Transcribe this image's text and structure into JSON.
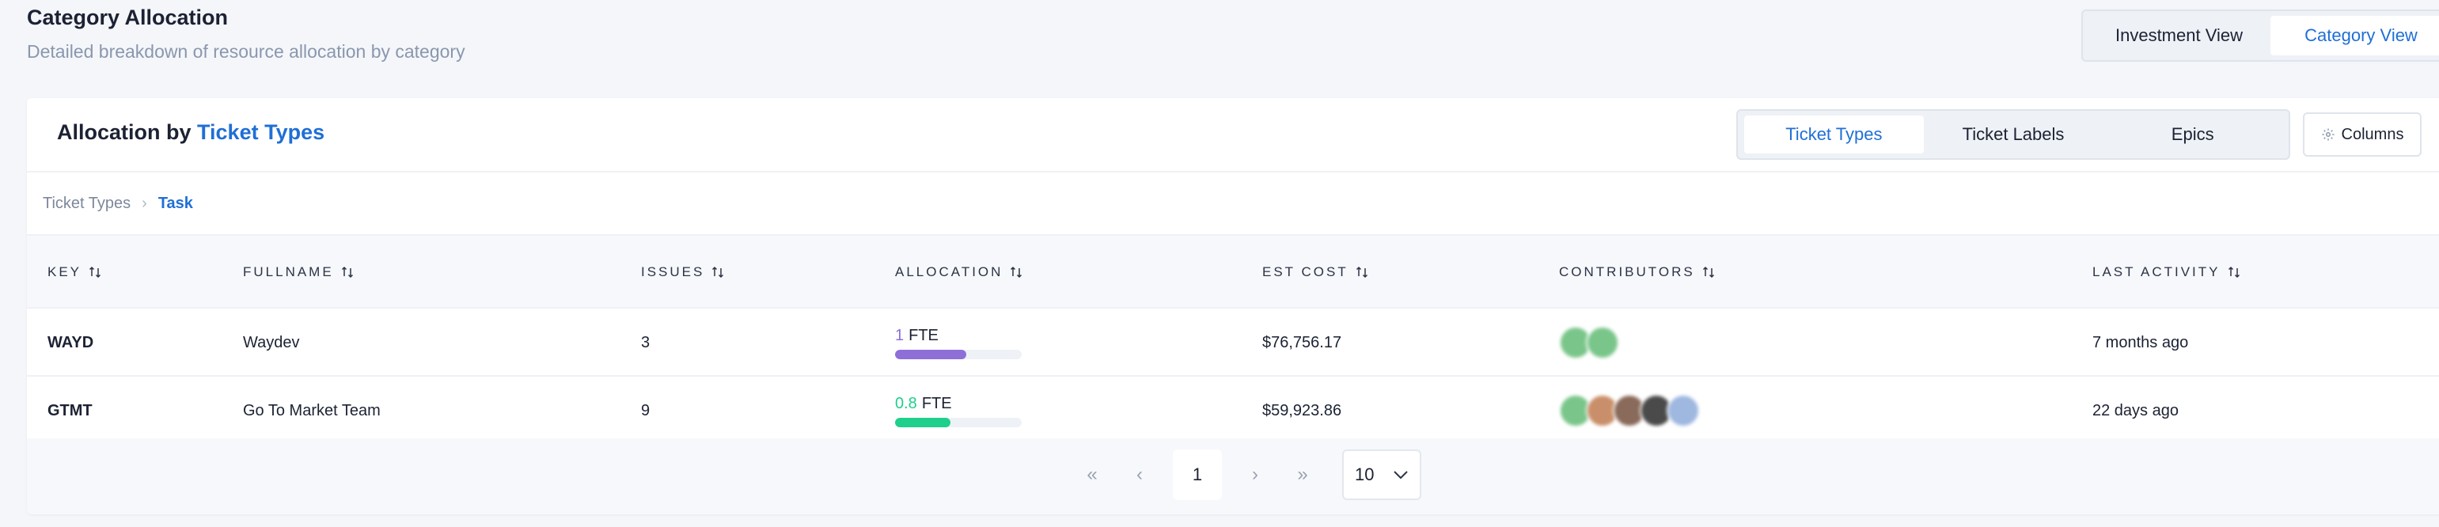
{
  "header": {
    "title": "Category Allocation",
    "subtitle": "Detailed breakdown of resource allocation by category"
  },
  "view_toggle": {
    "investment_label": "Investment View",
    "category_label": "Category View",
    "selected": "Category View"
  },
  "card": {
    "title_prefix": "Allocation by",
    "title_accent": "Ticket Types",
    "segments": [
      {
        "label": "Ticket Types",
        "active": true
      },
      {
        "label": "Ticket Labels",
        "active": false
      },
      {
        "label": "Epics",
        "active": false
      }
    ],
    "columns_label": "Columns"
  },
  "breadcrumb": {
    "root": "Ticket Types",
    "current": "Task"
  },
  "table": {
    "headers": {
      "key": "KEY",
      "fullname": "FULLNAME",
      "issues": "ISSUES",
      "allocation": "ALLOCATION",
      "est_cost": "EST COST",
      "contributors": "CONTRIBUTORS",
      "last_activity": "LAST ACTIVITY"
    },
    "rows": [
      {
        "key": "WAYD",
        "fullname": "Waydev",
        "issues": "3",
        "allocation_value": "1",
        "allocation_unit": "FTE",
        "allocation_fraction": 0.56,
        "allocation_color": "#8e6fd8",
        "est_cost": "$76,756.17",
        "contributor_colors": [
          "#7ac68a",
          "#7ac68a"
        ],
        "last_activity": "7 months ago"
      },
      {
        "key": "GTMT",
        "fullname": "Go To Market Team",
        "issues": "9",
        "allocation_value": "0.8",
        "allocation_unit": "FTE",
        "allocation_fraction": 0.44,
        "allocation_color": "#1fcf8c",
        "est_cost": "$59,923.86",
        "contributor_colors": [
          "#7ac68a",
          "#c98f6a",
          "#8a6a5a",
          "#4a4a4a",
          "#9fb8e0"
        ],
        "last_activity": "22 days ago"
      }
    ]
  },
  "pagination": {
    "current_page": "1",
    "page_size": "10"
  },
  "colors": {
    "accent": "#1f6fd6",
    "background": "#f4f6fa"
  }
}
